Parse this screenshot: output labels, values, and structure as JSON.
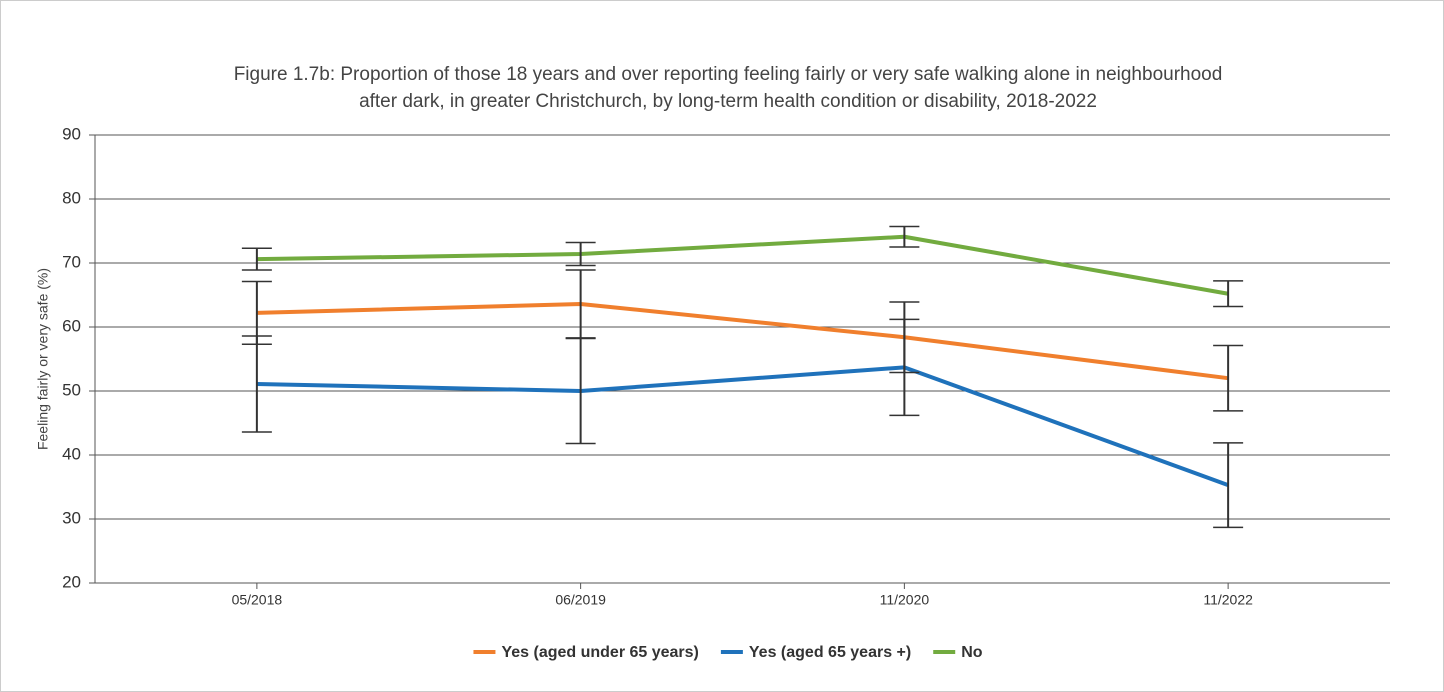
{
  "chart_data": {
    "type": "line",
    "title": [
      "Figure 1.7b: Proportion of those 18 years and over reporting feeling fairly or very safe walking alone in neighbourhood",
      "after dark, in greater Christchurch, by long-term health condition or disability, 2018-2022"
    ],
    "y_label": "Feeling fairly or very safe (%)",
    "categories": [
      "05/2018",
      "06/2019",
      "11/2020",
      "11/2022"
    ],
    "series": [
      {
        "name": "Yes (aged under 65 years)",
        "color": "#f07f2d",
        "values": [
          62.2,
          63.6,
          58.4,
          52.0
        ],
        "errors": [
          4.9,
          5.3,
          5.5,
          5.1
        ]
      },
      {
        "name": "Yes (aged 65 years +)",
        "color": "#1f72bb",
        "values": [
          51.1,
          50.0,
          53.7,
          35.3
        ],
        "errors": [
          7.5,
          8.2,
          7.5,
          6.6
        ]
      },
      {
        "name": "No",
        "color": "#72ab3f",
        "values": [
          70.6,
          71.4,
          74.1,
          65.2
        ],
        "errors": [
          1.7,
          1.8,
          1.6,
          2.0
        ]
      }
    ],
    "ylim": [
      20,
      90
    ],
    "yticks": [
      20,
      30,
      40,
      50,
      60,
      70,
      80,
      90
    ],
    "grid": true,
    "legend": "bottom"
  }
}
